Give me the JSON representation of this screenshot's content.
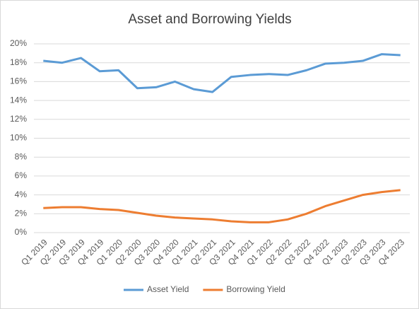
{
  "chart_data": {
    "type": "line",
    "title": "Asset and Borrowing Yields",
    "categories": [
      "Q1 2019",
      "Q2 2019",
      "Q3 2019",
      "Q4 2019",
      "Q1 2020",
      "Q2 2020",
      "Q3 2020",
      "Q4 2020",
      "Q1 2021",
      "Q2 2021",
      "Q3 2021",
      "Q4 2021",
      "Q1 2022",
      "Q2 2022",
      "Q3 2022",
      "Q4 2022",
      "Q1 2023",
      "Q2 2023",
      "Q3 2023",
      "Q4 2023"
    ],
    "series": [
      {
        "name": "Asset Yield",
        "color": "#5b9bd5",
        "values": [
          18.2,
          18.0,
          18.5,
          17.1,
          17.2,
          15.3,
          15.4,
          16.0,
          15.2,
          14.9,
          16.5,
          16.7,
          16.8,
          16.7,
          17.2,
          17.9,
          18.0,
          18.2,
          18.9,
          18.8
        ]
      },
      {
        "name": "Borrowing Yield",
        "color": "#ed7d31",
        "values": [
          2.6,
          2.7,
          2.7,
          2.5,
          2.4,
          2.1,
          1.8,
          1.6,
          1.5,
          1.4,
          1.2,
          1.1,
          1.1,
          1.4,
          2.0,
          2.8,
          3.4,
          4.0,
          4.3,
          4.5
        ]
      }
    ],
    "ylim": [
      0,
      20
    ],
    "yticks": [
      {
        "value": 0,
        "label": "0%"
      },
      {
        "value": 2,
        "label": "2%"
      },
      {
        "value": 4,
        "label": "4%"
      },
      {
        "value": 6,
        "label": "6%"
      },
      {
        "value": 8,
        "label": "8%"
      },
      {
        "value": 10,
        "label": "10%"
      },
      {
        "value": 12,
        "label": "12%"
      },
      {
        "value": 14,
        "label": "14%"
      },
      {
        "value": 16,
        "label": "16%"
      },
      {
        "value": 18,
        "label": "18%"
      },
      {
        "value": 20,
        "label": "20%"
      }
    ],
    "grid": true,
    "legend": "bottom"
  }
}
